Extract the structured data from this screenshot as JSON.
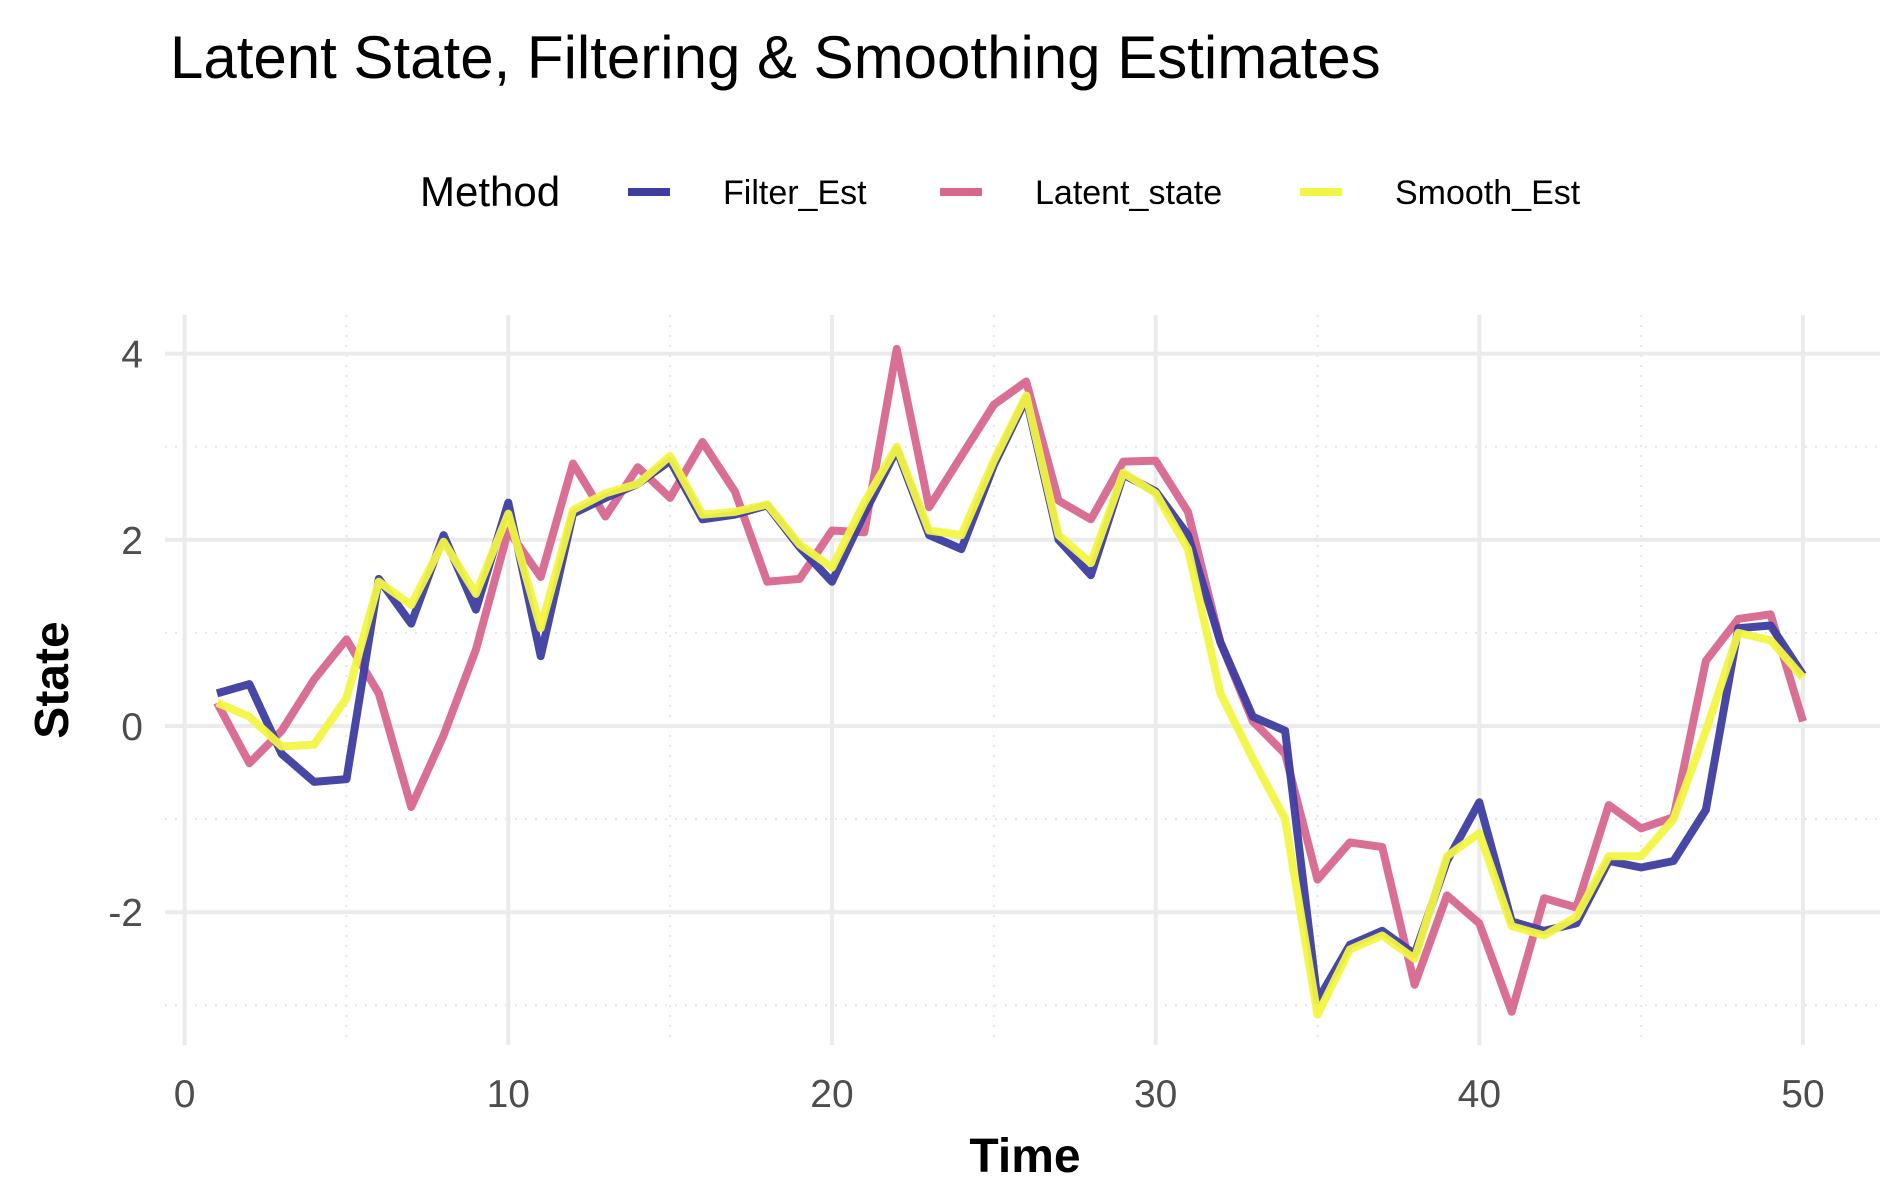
{
  "chart_data": {
    "type": "line",
    "title": "Latent State, Filtering & Smoothing Estimates",
    "xlabel": "Time",
    "ylabel": "State",
    "xlim": [
      1,
      50
    ],
    "ylim": [
      -3.1,
      4.05
    ],
    "x_ticks": [
      "0",
      "10",
      "20",
      "30",
      "40",
      "50"
    ],
    "y_ticks": [
      "4",
      "2",
      "0",
      "-2"
    ],
    "legend": {
      "title": "Method",
      "position": "top"
    },
    "grid": true,
    "x": [
      1,
      2,
      3,
      4,
      5,
      6,
      7,
      8,
      9,
      10,
      11,
      12,
      13,
      14,
      15,
      16,
      17,
      18,
      19,
      20,
      21,
      22,
      23,
      24,
      25,
      26,
      27,
      28,
      29,
      30,
      31,
      32,
      33,
      34,
      35,
      36,
      37,
      38,
      39,
      40,
      41,
      42,
      43,
      44,
      45,
      46,
      47,
      48,
      49,
      50
    ],
    "series": [
      {
        "name": "Filter_Est",
        "color": "#3d3da1",
        "values": [
          0.35,
          0.45,
          -0.3,
          -0.6,
          -0.57,
          1.58,
          1.1,
          2.05,
          1.25,
          2.4,
          0.75,
          2.28,
          2.45,
          2.6,
          2.85,
          2.22,
          2.27,
          2.37,
          1.92,
          1.55,
          2.28,
          2.97,
          2.05,
          1.9,
          2.8,
          3.52,
          2.0,
          1.62,
          2.7,
          2.52,
          2.05,
          0.9,
          0.1,
          -0.05,
          -2.95,
          -2.35,
          -2.2,
          -2.45,
          -1.45,
          -0.82,
          -2.1,
          -2.2,
          -2.12,
          -1.45,
          -1.52,
          -1.45,
          -0.9,
          1.05,
          1.08,
          0.55
        ]
      },
      {
        "name": "Latent_state",
        "color": "#d8678f",
        "values": [
          0.25,
          -0.4,
          -0.05,
          0.5,
          0.93,
          0.35,
          -0.87,
          -0.1,
          0.82,
          2.1,
          1.6,
          2.82,
          2.25,
          2.78,
          2.45,
          3.05,
          2.52,
          1.55,
          1.58,
          2.1,
          2.08,
          4.05,
          2.35,
          2.9,
          3.45,
          3.7,
          2.42,
          2.22,
          2.84,
          2.85,
          2.3,
          0.9,
          0.05,
          -0.3,
          -1.65,
          -1.25,
          -1.3,
          -2.78,
          -1.82,
          -2.12,
          -3.07,
          -1.85,
          -1.95,
          -0.85,
          -1.1,
          -0.98,
          0.7,
          1.15,
          1.2,
          0.05
        ]
      },
      {
        "name": "Smooth_Est",
        "color": "#f2f542",
        "values": [
          0.25,
          0.1,
          -0.22,
          -0.2,
          0.3,
          1.55,
          1.3,
          1.98,
          1.42,
          2.28,
          1.05,
          2.32,
          2.5,
          2.6,
          2.9,
          2.27,
          2.3,
          2.38,
          1.95,
          1.7,
          2.4,
          3.0,
          2.1,
          2.05,
          2.85,
          3.55,
          2.05,
          1.75,
          2.72,
          2.5,
          1.9,
          0.35,
          -0.35,
          -1.0,
          -3.1,
          -2.4,
          -2.25,
          -2.5,
          -1.4,
          -1.15,
          -2.15,
          -2.25,
          -2.05,
          -1.4,
          -1.4,
          -1.0,
          -0.05,
          1.0,
          0.92,
          0.52
        ]
      }
    ]
  }
}
